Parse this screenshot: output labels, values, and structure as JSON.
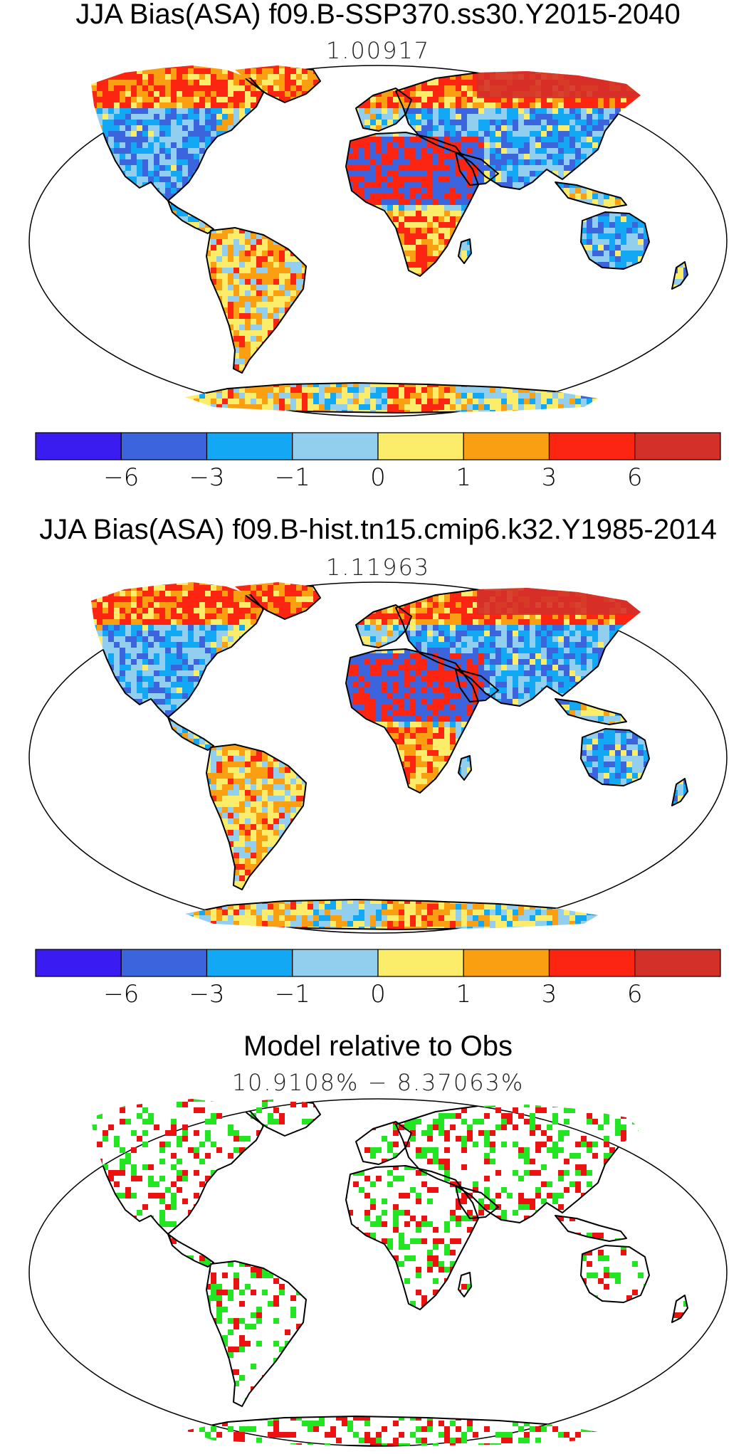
{
  "panels": [
    {
      "title": "JJA Bias(ASA) f09.B-SSP370.ss30.Y2015-2040",
      "value": "1.00917",
      "palette": [
        "#3b1cf0",
        "#3c64dc",
        "#12a8f4",
        "#92cfee",
        "#fbed6a",
        "#fb9f12",
        "#fb2512",
        "#d3302a"
      ],
      "land_fill": [
        "#3c64dc",
        "#12a8f4",
        "#92cfee",
        "#fbed6a",
        "#fb9f12",
        "#fb2512"
      ]
    },
    {
      "title": "JJA Bias(ASA) f09.B-hist.tn15.cmip6.k32.Y1985-2014",
      "value": "1.11963",
      "palette": [
        "#3b1cf0",
        "#3c64dc",
        "#12a8f4",
        "#92cfee",
        "#fbed6a",
        "#fb9f12",
        "#fb2512",
        "#d3302a"
      ],
      "land_fill": [
        "#3c64dc",
        "#12a8f4",
        "#92cfee",
        "#fbed6a",
        "#fb9f12",
        "#fb2512"
      ]
    },
    {
      "title": "Model relative to Obs",
      "value": "10.9108% − 8.37063%",
      "palette": [
        "#ffffff",
        "#22e622",
        "#ee1111"
      ]
    }
  ],
  "colorbar": {
    "colors": [
      "#3b1cf0",
      "#3c64dc",
      "#12a8f4",
      "#92cfee",
      "#fbed6a",
      "#fb9f12",
      "#fb2512",
      "#d3302a"
    ],
    "labels": [
      "−6",
      "−3",
      "−1",
      "0",
      "1",
      "3",
      "6"
    ]
  }
}
